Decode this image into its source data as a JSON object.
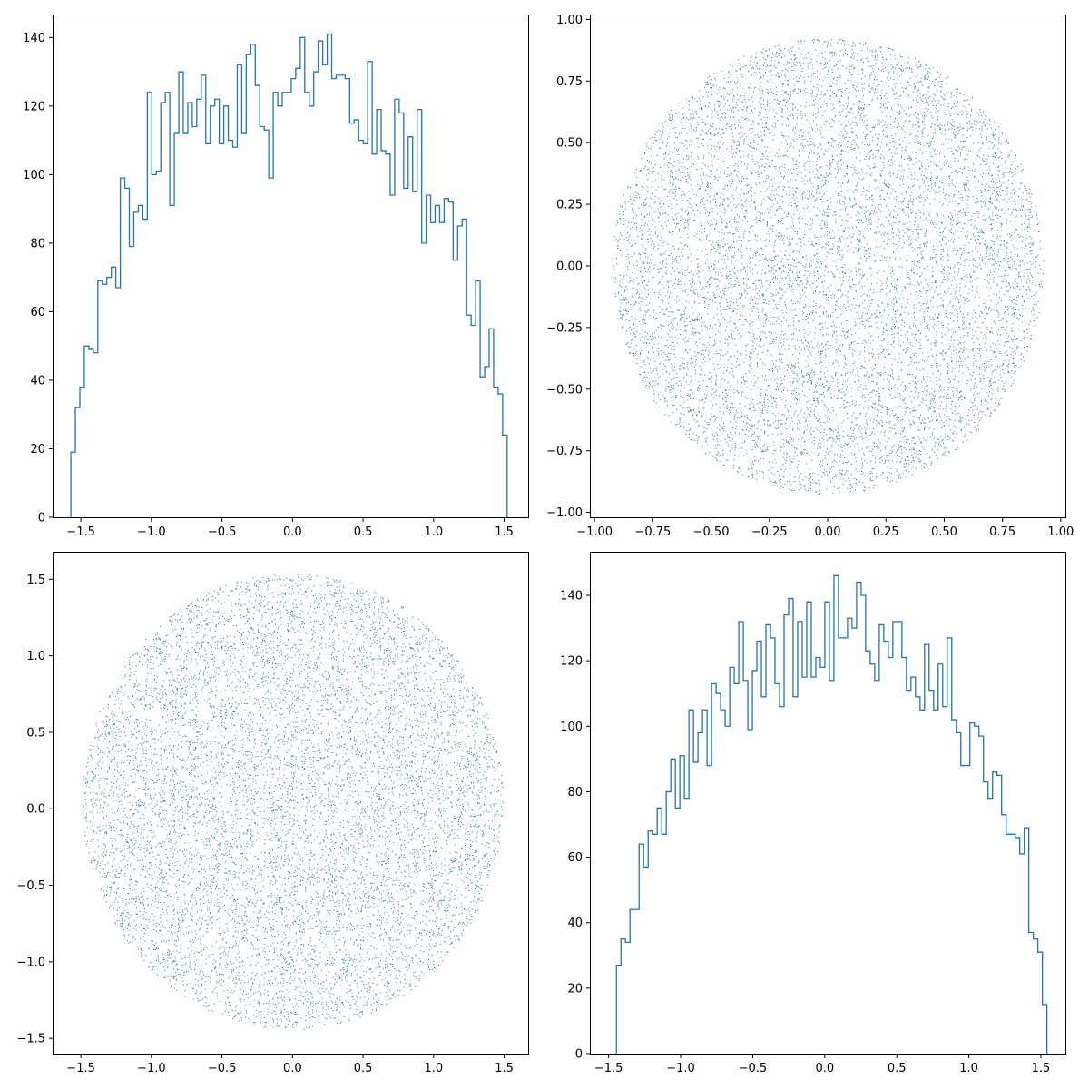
{
  "colors": {
    "series": "#1f77b4",
    "axes": "#000000",
    "background": "#ffffff"
  },
  "chart_data": [
    {
      "type": "histogram",
      "position": "top-left",
      "xlim": [
        -1.7,
        1.67
      ],
      "ylim": [
        0,
        146.7
      ],
      "xticks": [
        -1.5,
        -1.0,
        -0.5,
        0.0,
        0.5,
        1.0,
        1.5
      ],
      "xtick_labels": [
        "−1.5",
        "−1.0",
        "−0.5",
        "0.0",
        "0.5",
        "1.0",
        "1.5"
      ],
      "yticks": [
        0,
        20,
        40,
        60,
        80,
        100,
        120,
        140
      ],
      "ytick_labels": [
        "0",
        "20",
        "40",
        "60",
        "80",
        "100",
        "120",
        "140"
      ],
      "bin_start": -1.5708,
      "bin_end": 1.5208,
      "counts": [
        19,
        32,
        38,
        50,
        49,
        48,
        69,
        68,
        70,
        73,
        67,
        99,
        96,
        79,
        89,
        91,
        87,
        124,
        100,
        101,
        121,
        124,
        91,
        112,
        130,
        112,
        121,
        114,
        122,
        129,
        109,
        120,
        122,
        109,
        120,
        110,
        108,
        132,
        112,
        135,
        138,
        126,
        114,
        113,
        99,
        124,
        120,
        124,
        124,
        128,
        131,
        140,
        124,
        120,
        130,
        139,
        132,
        141,
        128,
        129,
        129,
        128,
        115,
        116,
        110,
        109,
        133,
        106,
        119,
        107,
        106,
        94,
        122,
        118,
        96,
        111,
        95,
        119,
        80,
        94,
        86,
        91,
        86,
        93,
        92,
        75,
        85,
        87,
        59,
        56,
        69,
        41,
        44,
        55,
        38,
        36,
        24
      ]
    },
    {
      "type": "scatter",
      "position": "top-right",
      "shape": "disk",
      "center": [
        0,
        0
      ],
      "radius": 0.925,
      "n_points": 10000,
      "xlim": [
        -1.02,
        1.02
      ],
      "ylim": [
        -1.02,
        1.02
      ],
      "xticks": [
        -1.0,
        -0.75,
        -0.5,
        -0.25,
        0.0,
        0.25,
        0.5,
        0.75,
        1.0
      ],
      "xtick_labels": [
        "−1.00",
        "−0.75",
        "−0.50",
        "−0.25",
        "0.00",
        "0.25",
        "0.50",
        "0.75",
        "1.00"
      ],
      "yticks": [
        -1.0,
        -0.75,
        -0.5,
        -0.25,
        0.0,
        0.25,
        0.5,
        0.75,
        1.0
      ],
      "ytick_labels": [
        "−1.00",
        "−0.75",
        "−0.50",
        "−0.25",
        "0.00",
        "0.25",
        "0.50",
        "0.75",
        "1.00"
      ]
    },
    {
      "type": "scatter",
      "position": "bottom-left",
      "shape": "disk",
      "center": [
        0,
        0.05
      ],
      "radius": 1.49,
      "n_points": 10000,
      "xlim": [
        -1.7,
        1.67
      ],
      "ylim": [
        -1.6,
        1.68
      ],
      "xticks": [
        -1.5,
        -1.0,
        -0.5,
        0.0,
        0.5,
        1.0,
        1.5
      ],
      "xtick_labels": [
        "−1.5",
        "−1.0",
        "−0.5",
        "0.0",
        "0.5",
        "1.0",
        "1.5"
      ],
      "yticks": [
        -1.5,
        -1.0,
        -0.5,
        0.0,
        0.5,
        1.0,
        1.5
      ],
      "ytick_labels": [
        "−1.5",
        "−1.0",
        "−0.5",
        "0.0",
        "0.5",
        "1.0",
        "1.5"
      ]
    },
    {
      "type": "histogram",
      "position": "bottom-right",
      "xlim": [
        -1.63,
        1.67
      ],
      "ylim": [
        0,
        153.3
      ],
      "xticks": [
        -1.5,
        -1.0,
        -0.5,
        0.0,
        0.5,
        1.0,
        1.5
      ],
      "xtick_labels": [
        "−1.5",
        "−1.0",
        "−0.5",
        "0.0",
        "0.5",
        "1.0",
        "1.5"
      ],
      "yticks": [
        0,
        20,
        40,
        60,
        80,
        100,
        120,
        140
      ],
      "ytick_labels": [
        "0",
        "20",
        "40",
        "60",
        "80",
        "100",
        "120",
        "140"
      ],
      "bin_start": -1.4458,
      "bin_end": 1.5417,
      "counts": [
        27,
        35,
        34,
        44,
        44,
        64,
        57,
        68,
        67,
        75,
        67,
        80,
        90,
        75,
        91,
        78,
        105,
        89,
        98,
        105,
        88,
        113,
        110,
        105,
        100,
        118,
        113,
        132,
        114,
        99,
        117,
        126,
        109,
        131,
        127,
        113,
        106,
        134,
        139,
        109,
        132,
        115,
        138,
        115,
        121,
        118,
        138,
        114,
        146,
        127,
        127,
        133,
        130,
        144,
        140,
        123,
        119,
        114,
        131,
        126,
        121,
        132,
        132,
        121,
        111,
        115,
        109,
        105,
        125,
        111,
        105,
        119,
        106,
        127,
        102,
        98,
        88,
        88,
        101,
        100,
        97,
        83,
        78,
        86,
        85,
        73,
        67,
        67,
        66,
        61,
        69,
        37,
        35,
        31,
        15
      ]
    }
  ]
}
